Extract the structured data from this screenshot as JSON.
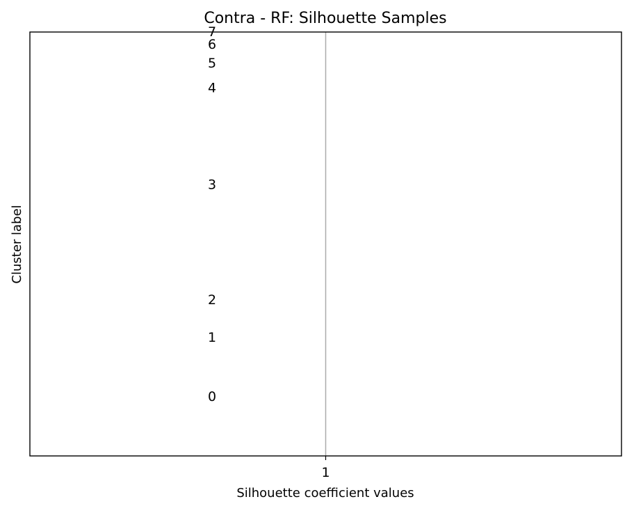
{
  "chart_data": {
    "type": "bar",
    "orientation": "horizontal",
    "title": "Contra - RF: Silhouette Samples",
    "xlabel": "Silhouette coefficient values",
    "ylabel": "Cluster label",
    "x_ticks": [
      1
    ],
    "x_tick_labels": [
      "1"
    ],
    "xlim": [
      0.0,
      2.0
    ],
    "ylim": [
      0,
      340
    ],
    "grid": false,
    "legend": "none",
    "reference_line": {
      "x": 1,
      "color": "#aaaaaa"
    },
    "clusters": [
      {
        "label": "0",
        "y_start": 10,
        "y_end": 85,
        "silhouette": 1
      },
      {
        "label": "1",
        "y_start": 95,
        "y_end": 95,
        "silhouette": 1
      },
      {
        "label": "2",
        "y_start": 105,
        "y_end": 145,
        "silhouette": 1
      },
      {
        "label": "3",
        "y_start": 155,
        "y_end": 280,
        "silhouette": 1
      },
      {
        "label": "4",
        "y_start": 290,
        "y_end": 300,
        "silhouette": 1
      },
      {
        "label": "5",
        "y_start": 310,
        "y_end": 320,
        "silhouette": 1
      },
      {
        "label": "6",
        "y_start": 330,
        "y_end": 330,
        "silhouette": 1
      },
      {
        "label": "7",
        "y_start": 340,
        "y_end": 340,
        "silhouette": 1
      }
    ]
  }
}
